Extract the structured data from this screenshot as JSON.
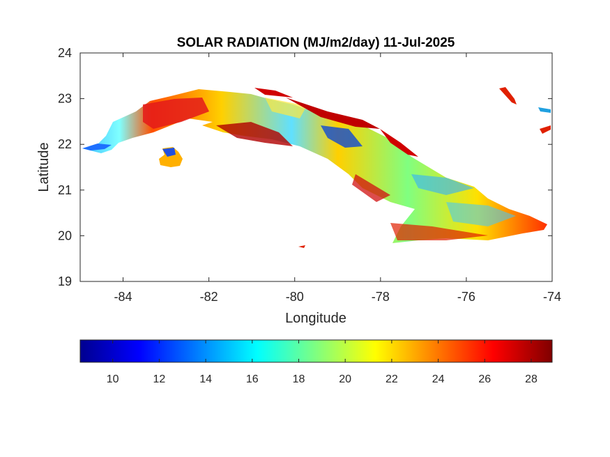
{
  "chart_data": {
    "type": "heatmap",
    "title": "SOLAR RADIATION (MJ/m2/day) 11-Jul-2025",
    "xlabel": "Longitude",
    "ylabel": "Latitude",
    "xlim": [
      -85,
      -74
    ],
    "ylim": [
      19,
      24
    ],
    "x_ticks": [
      -84,
      -82,
      -80,
      -78,
      -76,
      -74
    ],
    "y_ticks": [
      19,
      20,
      21,
      22,
      23,
      24
    ],
    "colorbar": {
      "colormap": "jet",
      "range": [
        8.6,
        28.9
      ],
      "ticks": [
        10,
        12,
        14,
        16,
        18,
        20,
        22,
        24,
        26,
        28
      ],
      "placement": "bottom"
    },
    "grid": false,
    "region": "Cuba"
  }
}
